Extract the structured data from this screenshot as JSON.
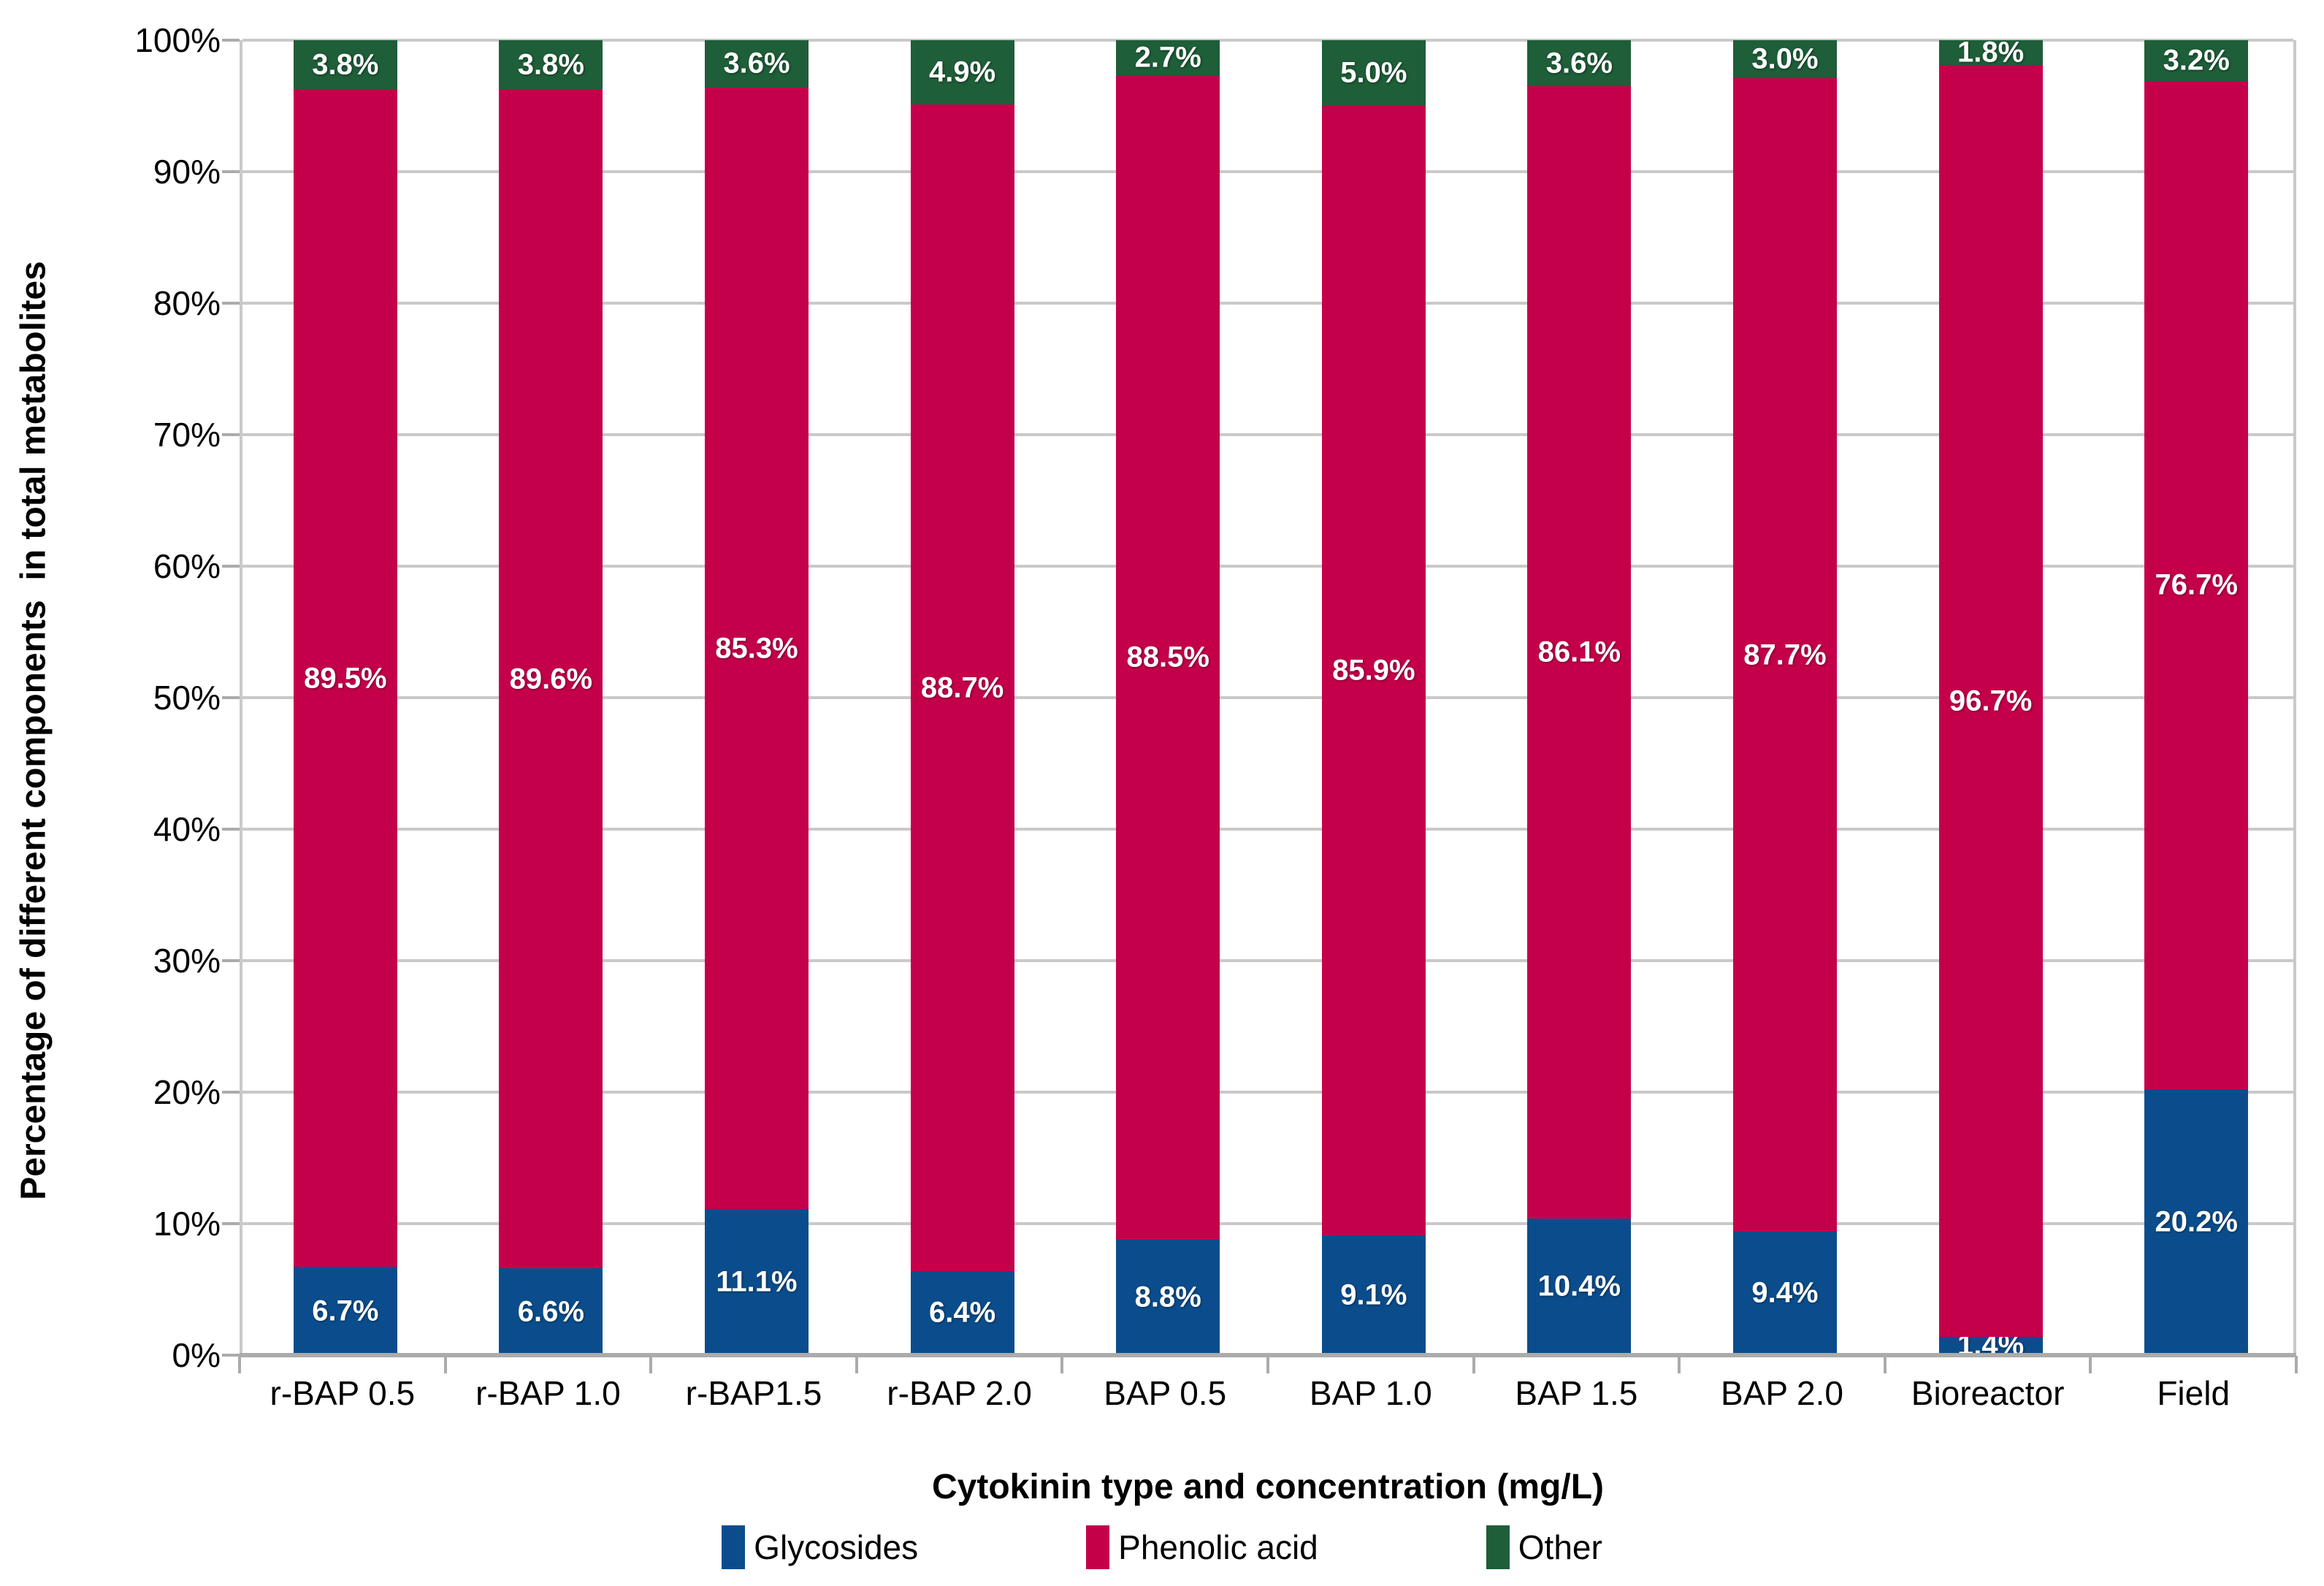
{
  "chart_data": {
    "type": "bar",
    "stacked": true,
    "stack_mode": "percent",
    "title": "",
    "xlabel": "Cytokinin type and concentration (mg/L)",
    "ylabel": "Percentage of different components  in total metabolites",
    "categories": [
      "r-BAP 0.5",
      "r-BAP 1.0",
      "r-BAP1.5",
      "r-BAP 2.0",
      "BAP 0.5",
      "BAP 1.0",
      "BAP 1.5",
      "BAP 2.0",
      "Bioreactor",
      "Field"
    ],
    "series": [
      {
        "name": "Glycosides",
        "color": "#0B4D8C",
        "values": [
          6.7,
          6.6,
          11.1,
          6.4,
          8.8,
          9.1,
          10.4,
          9.4,
          1.4,
          20.2
        ],
        "labels": [
          "6.7%",
          "6.6%",
          "11.1%",
          "6.4%",
          "8.8%",
          "9.1%",
          "10.4%",
          "9.4%",
          "1.4%",
          "20.2%"
        ]
      },
      {
        "name": "Phenolic acid",
        "color": "#C5004A",
        "values": [
          89.5,
          89.6,
          85.3,
          88.7,
          88.5,
          85.9,
          86.1,
          87.7,
          96.7,
          76.7
        ],
        "labels": [
          "89.5%",
          "89.6%",
          "85.3%",
          "88.7%",
          "88.5%",
          "85.9%",
          "86.1%",
          "87.7%",
          "96.7%",
          "76.7%"
        ]
      },
      {
        "name": "Other",
        "color": "#1E5E38",
        "values": [
          3.8,
          3.8,
          3.6,
          4.9,
          2.7,
          5.0,
          3.6,
          3.0,
          1.8,
          3.2
        ],
        "labels": [
          "3.8%",
          "3.8%",
          "3.6%",
          "4.9%",
          "2.7%",
          "5.0%",
          "3.6%",
          "3.0%",
          "1.8%",
          "3.2%"
        ]
      }
    ],
    "ylim": [
      0,
      100
    ],
    "ytick_step": 10,
    "ytick_labels": [
      "0%",
      "10%",
      "20%",
      "30%",
      "40%",
      "50%",
      "60%",
      "70%",
      "80%",
      "90%",
      "100%"
    ],
    "grid": true,
    "legend_position": "bottom",
    "axis_colors": {
      "gridline": "#C9C9C9",
      "axis_line": "#ABABAB",
      "text": "#000000"
    }
  }
}
